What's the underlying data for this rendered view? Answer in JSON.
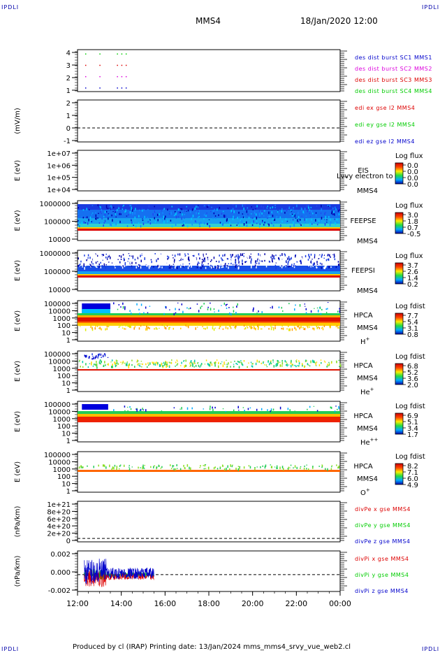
{
  "corner_label": "IPDLI",
  "header": {
    "title": "MMS4",
    "datetime": "18/Jan/2020 12:00"
  },
  "footer": {
    "text": "Produced by cl (IRAP)   Printing date: 13/Jan/2024   mms_mms4_srvy_vue_web2.cl"
  },
  "colors": {
    "red": "#dd0000",
    "green": "#00cc00",
    "blue": "#0000cc",
    "magenta": "#dd00dd"
  },
  "x_axis": {
    "ticks": [
      "12:00",
      "14:00",
      "16:00",
      "18:00",
      "20:00",
      "22:00",
      "00:00"
    ]
  },
  "chart_data": [
    {
      "type": "scatter",
      "ylim": [
        0.7,
        4.4
      ],
      "y_ticks": [
        "1",
        "2",
        "3",
        "4"
      ],
      "legend": [
        {
          "name": "des dist burst SC1 MMS1",
          "color": "#0000cc"
        },
        {
          "name": "des dist burst SC2 MMS2",
          "color": "#dd00dd"
        },
        {
          "name": "des dist burst SC3 MMS3",
          "color": "#dd0000"
        },
        {
          "name": "des dist burst SC4 MMS4",
          "color": "#00cc00"
        }
      ],
      "series": [
        {
          "name": "des dist burst SC1 MMS1",
          "x": [
            12.35,
            13.0,
            13.8,
            14.0,
            14.2
          ],
          "y": 1
        },
        {
          "name": "des dist burst SC2 MMS2",
          "x": [
            12.35,
            13.0,
            13.8,
            14.0,
            14.2
          ],
          "y": 2
        },
        {
          "name": "des dist burst SC3 MMS3",
          "x": [
            12.35,
            13.0,
            13.8,
            14.0,
            14.2
          ],
          "y": 3
        },
        {
          "name": "des dist burst SC4 MMS4",
          "x": [
            12.35,
            13.0,
            13.8,
            14.0,
            14.2
          ],
          "y": 4
        }
      ]
    },
    {
      "type": "line",
      "ylabel": "(mV/m)",
      "ylim": [
        -1.1,
        2.2
      ],
      "y_ticks": [
        "-1",
        "0",
        "1",
        "2"
      ],
      "zero_line": true,
      "legend": [
        {
          "name": "edi ex gse l2 MMS4",
          "color": "#dd0000"
        },
        {
          "name": "edi ey gse l2 MMS4",
          "color": "#00cc00"
        },
        {
          "name": "edi ez gse l2 MMS4",
          "color": "#0000cc"
        }
      ]
    },
    {
      "type": "heatmap",
      "ylabel": "E (eV)",
      "y_ticks": [
        "1e+04",
        "1e+05",
        "1e+06",
        "1e+07"
      ],
      "instrument": "EIS",
      "overlay_text": "Lvvy electron to",
      "spacecraft": "MMS4",
      "colorbar": {
        "title": "Log flux",
        "labels": [
          "0.0",
          "0.0",
          "0.0",
          "0.0"
        ]
      }
    },
    {
      "type": "heatmap",
      "ylabel": "E (eV)",
      "y_ticks": [
        "10000",
        "100000",
        "1000000"
      ],
      "instrument": "FEEPSE",
      "spacecraft": "MMS4",
      "colorbar": {
        "title": "Log flux",
        "labels": [
          "3.0",
          "1.8",
          "0.7",
          "-0.5"
        ]
      },
      "time_range": [
        12.0,
        24.0
      ]
    },
    {
      "type": "heatmap",
      "ylabel": "E (eV)",
      "y_ticks": [
        "10000",
        "100000",
        "1000000"
      ],
      "instrument": "FEEPSI",
      "spacecraft": "MMS4",
      "colorbar": {
        "title": "Log flux",
        "labels": [
          "3.7",
          "2.6",
          "1.4",
          "0.2"
        ]
      },
      "time_range": [
        12.0,
        24.0
      ]
    },
    {
      "type": "heatmap",
      "ylabel": "E (eV)",
      "y_ticks": [
        "1",
        "10",
        "100",
        "1000",
        "10000",
        "100000"
      ],
      "instrument": "HPCA",
      "spacecraft": "MMS4",
      "species": "H",
      "species_sup": "+",
      "colorbar": {
        "title": "Log fdist",
        "labels": [
          "7.7",
          "5.4",
          "3.1",
          "0.8"
        ]
      },
      "time_range": [
        12.0,
        24.0
      ]
    },
    {
      "type": "heatmap",
      "ylabel": "E (eV)",
      "y_ticks": [
        "1",
        "10",
        "100",
        "1000",
        "10000",
        "100000"
      ],
      "instrument": "HPCA",
      "spacecraft": "MMS4",
      "species": "He",
      "species_sup": "+",
      "colorbar": {
        "title": "Log fdist",
        "labels": [
          "6.8",
          "5.2",
          "3.6",
          "2.0"
        ]
      },
      "time_range": [
        12.0,
        24.0
      ]
    },
    {
      "type": "heatmap",
      "ylabel": "E (eV)",
      "y_ticks": [
        "1",
        "10",
        "100",
        "1000",
        "10000",
        "100000"
      ],
      "instrument": "HPCA",
      "spacecraft": "MMS4",
      "species": "He",
      "species_sup": "++",
      "colorbar": {
        "title": "Log fdist",
        "labels": [
          "6.9",
          "5.1",
          "3.4",
          "1.7"
        ]
      },
      "time_range": [
        12.0,
        24.0
      ]
    },
    {
      "type": "heatmap",
      "ylabel": "E (eV)",
      "y_ticks": [
        "1",
        "10",
        "100",
        "1000",
        "10000",
        "100000"
      ],
      "instrument": "HPCA",
      "spacecraft": "MMS4",
      "species": "O",
      "species_sup": "+",
      "colorbar": {
        "title": "Log fdist",
        "labels": [
          "8.2",
          "7.1",
          "6.0",
          "4.9"
        ]
      },
      "time_range": [
        12.0,
        24.0
      ]
    },
    {
      "type": "line",
      "ylabel": "(nPa/km)",
      "ylim": [
        -1e+20,
        1.1e+21
      ],
      "y_ticks": [
        "0",
        "2e+20",
        "4e+20",
        "6e+20",
        "8e+20",
        "1e+21"
      ],
      "zero_line": true,
      "legend": [
        {
          "name": "divPe x gse MMS4",
          "color": "#dd0000"
        },
        {
          "name": "divPe y gse MMS4",
          "color": "#00cc00"
        },
        {
          "name": "divPe z gse MMS4",
          "color": "#0000cc"
        }
      ]
    },
    {
      "type": "line",
      "ylabel": "(nPa/km)",
      "ylim": [
        -0.0025,
        0.0035
      ],
      "y_ticks": [
        "-0.002",
        "0.000",
        "0.002"
      ],
      "zero_line": true,
      "legend": [
        {
          "name": "divPi x gse MMS4",
          "color": "#dd0000"
        },
        {
          "name": "divPi y gse MMS4",
          "color": "#00cc00"
        },
        {
          "name": "divPi z gse MMS4",
          "color": "#0000cc"
        }
      ],
      "data_time_range": [
        12.3,
        15.5
      ]
    }
  ]
}
